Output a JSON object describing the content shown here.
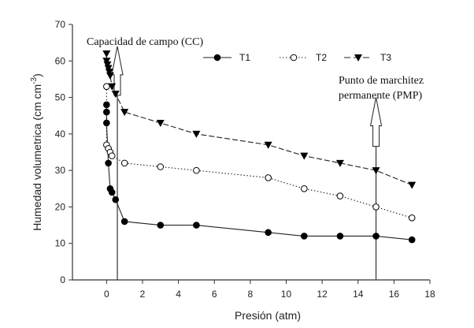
{
  "chart_data": {
    "type": "line",
    "title": "",
    "xlabel": "Presión (atm)",
    "ylabel": "Humedad volumetrica (cm cm",
    "ylabel_superscript": "-3",
    "ylabel_suffix": ")",
    "xlim": [
      -1.9,
      18
    ],
    "ylim": [
      0,
      70
    ],
    "xticks": [
      0,
      2,
      4,
      6,
      8,
      10,
      12,
      14,
      16,
      18
    ],
    "yticks": [
      0,
      10,
      20,
      30,
      40,
      50,
      60,
      70
    ],
    "grid": false,
    "legend_position": "top-right",
    "series": [
      {
        "name": "T1",
        "marker": "filled-circle",
        "line": "solid",
        "x": [
          0,
          0,
          0,
          0.1,
          0.2,
          0.3,
          0.5,
          1,
          3,
          5,
          9,
          11,
          13,
          15,
          17
        ],
        "y": [
          48,
          46,
          43,
          32,
          25,
          24,
          22,
          16,
          15,
          15,
          13,
          12,
          12,
          12,
          11
        ]
      },
      {
        "name": "T2",
        "marker": "open-circle",
        "line": "dotted",
        "x": [
          0,
          0,
          0.1,
          0.2,
          0.3,
          1,
          3,
          5,
          9,
          11,
          13,
          15,
          17
        ],
        "y": [
          53,
          37,
          36,
          35,
          34,
          32,
          31,
          30,
          28,
          25,
          23,
          20,
          17
        ]
      },
      {
        "name": "T3",
        "marker": "filled-triangle-down",
        "line": "dashed",
        "x": [
          0,
          0,
          0.05,
          0.1,
          0.15,
          0.2,
          0.3,
          0.5,
          1,
          3,
          5,
          9,
          11,
          13,
          15,
          17
        ],
        "y": [
          62,
          60,
          59,
          58,
          57,
          56,
          53,
          51,
          46,
          43,
          40,
          37,
          34,
          32,
          30,
          26
        ]
      }
    ],
    "annotations": [
      {
        "text": "Capacidad de campo (CC)",
        "arrow_x": 0.6,
        "arrow_from_y": 0,
        "arrow_to_y": 64
      },
      {
        "text_lines": [
          "Punto de marchitez",
          "permanente (PMP)"
        ],
        "arrow_x": 15,
        "arrow_from_y": 0,
        "arrow_to_y": 50
      }
    ]
  }
}
